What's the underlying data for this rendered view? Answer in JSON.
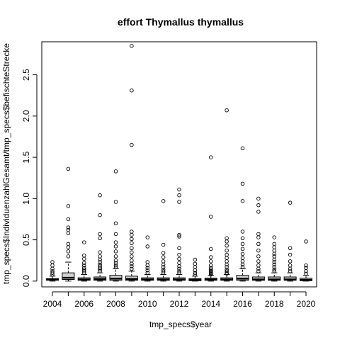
{
  "chart_data": {
    "type": "boxplot",
    "title": "effort Thymallus thymallus",
    "xlabel": "tmp_specs$year",
    "ylabel": "tmp_specs$IndividuenzahlGesamt/tmp_specs$befischteStrecke",
    "ylim": [
      -0.07,
      2.9
    ],
    "y_ticks": [
      "0.0",
      "0.5",
      "1.0",
      "1.5",
      "2.0",
      "2.5"
    ],
    "x_tick_labels": [
      "2004",
      "2006",
      "2008",
      "2010",
      "2012",
      "2014",
      "2016",
      "2018",
      "2020"
    ],
    "grid": false,
    "legend": "none",
    "categories": [
      "2004",
      "2005",
      "2006",
      "2007",
      "2008",
      "2009",
      "2010",
      "2011",
      "2012",
      "2013",
      "2014",
      "2015",
      "2016",
      "2017",
      "2018",
      "2019",
      "2020"
    ],
    "boxes": [
      {
        "q1": 0.01,
        "median": 0.02,
        "q3": 0.03,
        "whisker_low": 0.0,
        "whisker_high": 0.06,
        "outliers": [
          0.08,
          0.1,
          0.12,
          0.15,
          0.19,
          0.23
        ]
      },
      {
        "q1": 0.02,
        "median": 0.04,
        "q3": 0.1,
        "whisker_low": 0.0,
        "whisker_high": 0.23,
        "outliers": [
          0.3,
          0.36,
          0.41,
          0.45,
          0.58,
          0.62,
          0.65,
          0.75,
          0.91,
          1.36
        ]
      },
      {
        "q1": 0.01,
        "median": 0.02,
        "q3": 0.04,
        "whisker_low": 0.0,
        "whisker_high": 0.08,
        "outliers": [
          0.1,
          0.12,
          0.14,
          0.16,
          0.19,
          0.22,
          0.27,
          0.31,
          0.47
        ]
      },
      {
        "q1": 0.01,
        "median": 0.025,
        "q3": 0.05,
        "whisker_low": 0.0,
        "whisker_high": 0.1,
        "outliers": [
          0.12,
          0.14,
          0.16,
          0.18,
          0.2,
          0.23,
          0.26,
          0.3,
          0.35,
          0.52,
          0.57,
          0.8,
          1.04
        ]
      },
      {
        "q1": 0.01,
        "median": 0.03,
        "q3": 0.07,
        "whisker_low": 0.0,
        "whisker_high": 0.15,
        "outliers": [
          0.17,
          0.19,
          0.22,
          0.25,
          0.3,
          0.36,
          0.42,
          0.47,
          0.57,
          0.7,
          0.96,
          1.33
        ]
      },
      {
        "q1": 0.01,
        "median": 0.025,
        "q3": 0.06,
        "whisker_low": 0.0,
        "whisker_high": 0.12,
        "outliers": [
          0.15,
          0.18,
          0.21,
          0.25,
          0.3,
          0.35,
          0.4,
          0.46,
          0.51,
          0.56,
          0.6,
          1.65,
          2.31,
          2.85
        ]
      },
      {
        "q1": 0.01,
        "median": 0.02,
        "q3": 0.04,
        "whisker_low": 0.0,
        "whisker_high": 0.08,
        "outliers": [
          0.1,
          0.13,
          0.16,
          0.19,
          0.23,
          0.42,
          0.53
        ]
      },
      {
        "q1": 0.01,
        "median": 0.02,
        "q3": 0.04,
        "whisker_low": 0.0,
        "whisker_high": 0.08,
        "outliers": [
          0.1,
          0.12,
          0.14,
          0.17,
          0.2,
          0.24,
          0.29,
          0.34,
          0.44,
          0.97
        ]
      },
      {
        "q1": 0.01,
        "median": 0.02,
        "q3": 0.04,
        "whisker_low": 0.0,
        "whisker_high": 0.08,
        "outliers": [
          0.1,
          0.12,
          0.15,
          0.18,
          0.22,
          0.27,
          0.32,
          0.4,
          0.54,
          0.56,
          0.96,
          1.04,
          1.11
        ]
      },
      {
        "q1": 0.005,
        "median": 0.015,
        "q3": 0.03,
        "whisker_low": 0.0,
        "whisker_high": 0.06,
        "outliers": [
          0.08,
          0.1,
          0.13,
          0.17,
          0.21,
          0.26
        ]
      },
      {
        "q1": 0.01,
        "median": 0.02,
        "q3": 0.035,
        "whisker_low": 0.0,
        "whisker_high": 0.07,
        "outliers": [
          0.08,
          0.09,
          0.1,
          0.11,
          0.12,
          0.14,
          0.16,
          0.19,
          0.24,
          0.29,
          0.39,
          0.78,
          1.5
        ]
      },
      {
        "q1": 0.01,
        "median": 0.02,
        "q3": 0.04,
        "whisker_low": 0.0,
        "whisker_high": 0.08,
        "outliers": [
          0.09,
          0.1,
          0.12,
          0.14,
          0.17,
          0.2,
          0.24,
          0.28,
          0.32,
          0.37,
          0.43,
          0.48,
          0.52,
          2.07
        ]
      },
      {
        "q1": 0.01,
        "median": 0.03,
        "q3": 0.07,
        "whisker_low": 0.0,
        "whisker_high": 0.15,
        "outliers": [
          0.17,
          0.2,
          0.24,
          0.28,
          0.33,
          0.39,
          0.45,
          0.52,
          0.6,
          0.97,
          1.18,
          1.61
        ]
      },
      {
        "q1": 0.01,
        "median": 0.02,
        "q3": 0.05,
        "whisker_low": 0.0,
        "whisker_high": 0.1,
        "outliers": [
          0.12,
          0.15,
          0.19,
          0.24,
          0.3,
          0.37,
          0.45,
          0.53,
          0.57,
          0.84,
          0.92,
          1.0
        ]
      },
      {
        "q1": 0.01,
        "median": 0.02,
        "q3": 0.05,
        "whisker_low": 0.0,
        "whisker_high": 0.1,
        "outliers": [
          0.12,
          0.14,
          0.17,
          0.2,
          0.23,
          0.26,
          0.3,
          0.33,
          0.37,
          0.41,
          0.45,
          0.53
        ]
      },
      {
        "q1": 0.01,
        "median": 0.02,
        "q3": 0.05,
        "whisker_low": 0.0,
        "whisker_high": 0.1,
        "outliers": [
          0.12,
          0.15,
          0.19,
          0.24,
          0.32,
          0.4,
          0.95
        ]
      },
      {
        "q1": 0.005,
        "median": 0.015,
        "q3": 0.035,
        "whisker_low": 0.0,
        "whisker_high": 0.07,
        "outliers": [
          0.09,
          0.12,
          0.16,
          0.19,
          0.48
        ]
      }
    ],
    "colors": {
      "box_fill": "#d3d3d3",
      "stroke": "#000000",
      "background": "#ffffff"
    }
  }
}
